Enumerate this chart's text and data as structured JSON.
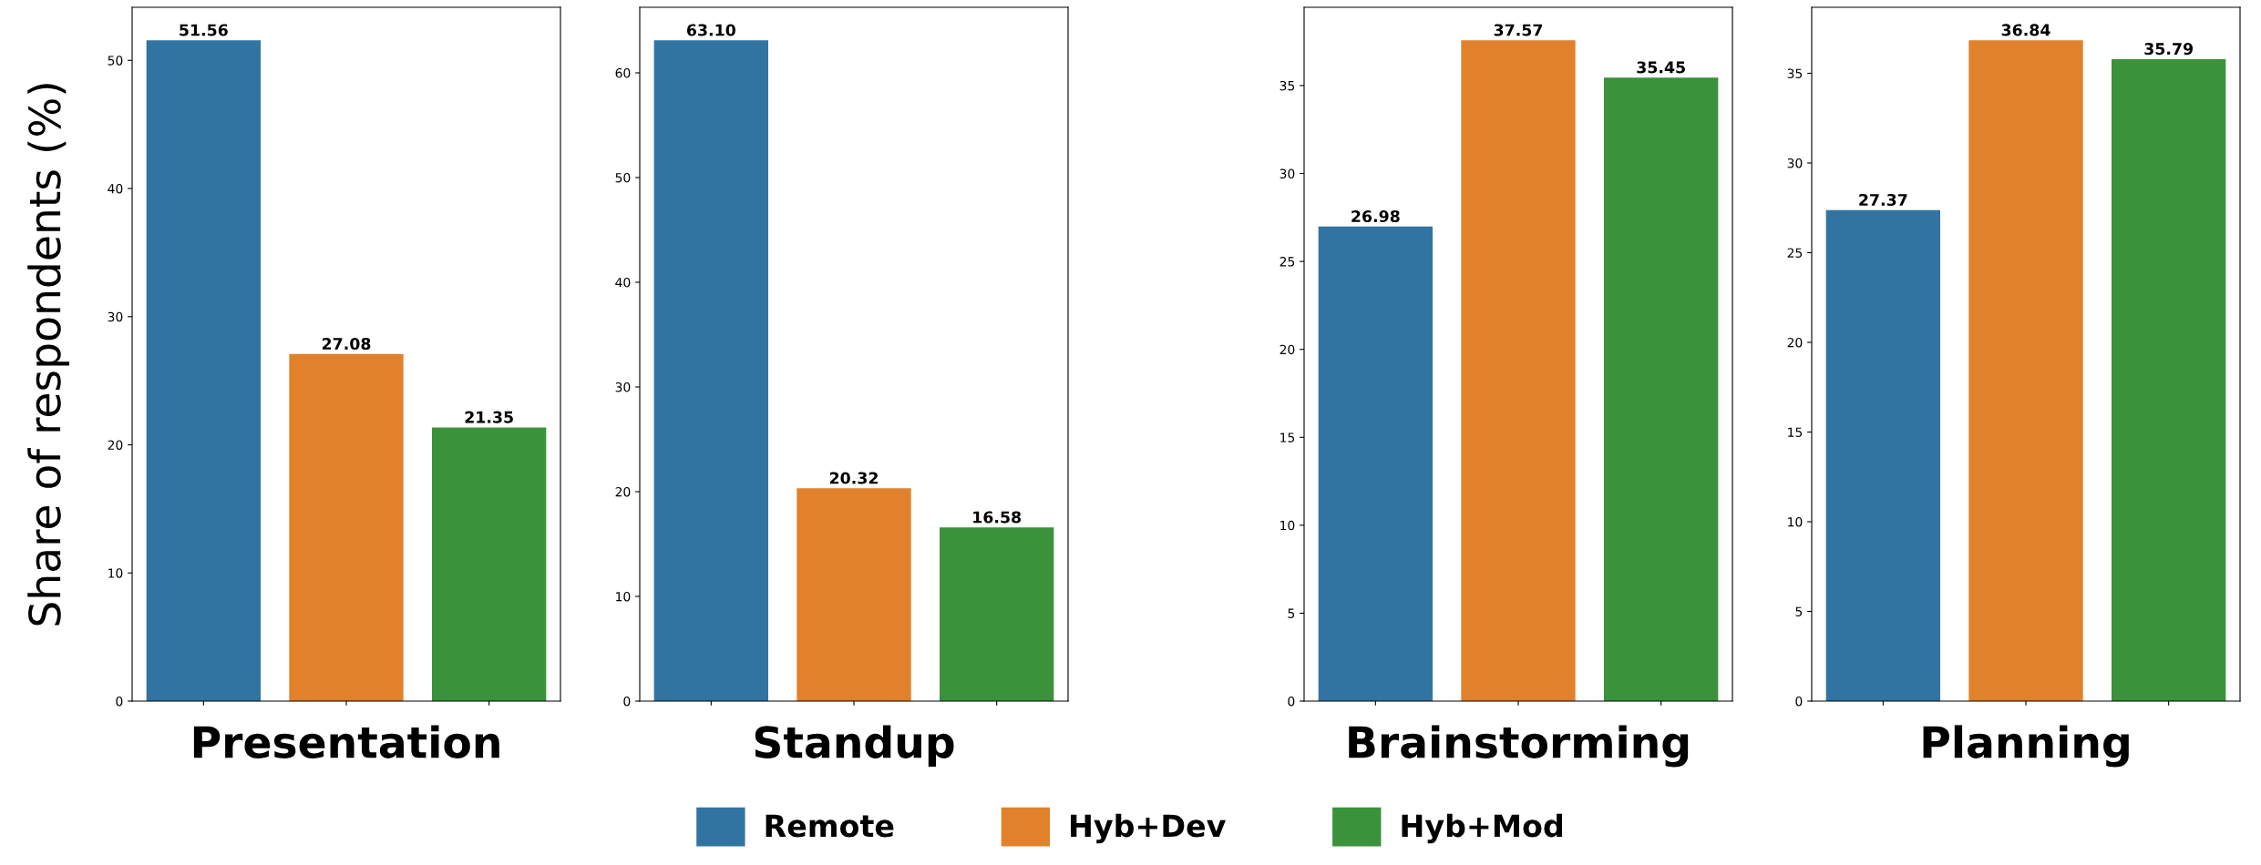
{
  "chart_data": [
    {
      "type": "bar",
      "xlabel": "Presentation",
      "ylabel": "Share of respondents (%)",
      "categories": [
        null,
        null,
        null
      ],
      "series": [
        {
          "name": "Remote",
          "color": "#3274a1",
          "values": [
            51.56,
            null,
            null
          ],
          "value_labels": [
            "51.56",
            null,
            null
          ]
        },
        {
          "name": "Hyb+Dev",
          "color": "#e1812c",
          "values": [
            null,
            27.08,
            null
          ],
          "value_labels": [
            null,
            "27.08",
            null
          ]
        },
        {
          "name": "Hyb+Mod",
          "color": "#3a923a",
          "values": [
            null,
            null,
            21.35
          ],
          "value_labels": [
            null,
            null,
            "21.35"
          ]
        }
      ],
      "ylim": [
        0,
        54.14
      ],
      "yticks": [
        0,
        10,
        20,
        30,
        40,
        50
      ],
      "legend": "bottom"
    },
    {
      "type": "bar",
      "xlabel": "Standup",
      "categories": [
        null,
        null,
        null
      ],
      "series": [
        {
          "color": "#3274a1",
          "values": [
            63.1,
            null,
            null
          ],
          "value_labels": [
            "63.10",
            null,
            null
          ]
        },
        {
          "color": "#e1812c",
          "values": [
            null,
            20.32,
            null
          ],
          "value_labels": [
            null,
            "20.32",
            null
          ]
        },
        {
          "color": "#3a923a",
          "values": [
            null,
            null,
            16.58
          ],
          "value_labels": [
            null,
            null,
            "16.58"
          ]
        }
      ],
      "ylim": [
        0,
        66.26
      ],
      "yticks": [
        0,
        10,
        20,
        30,
        40,
        50,
        60
      ]
    },
    {
      "type": "bar",
      "xlabel": "Brainstorming",
      "categories": [
        null,
        null,
        null
      ],
      "series": [
        {
          "color": "#3274a1",
          "values": [
            26.98,
            null,
            null
          ],
          "value_labels": [
            "26.98",
            null,
            null
          ]
        },
        {
          "color": "#e1812c",
          "values": [
            null,
            37.57,
            null
          ],
          "value_labels": [
            null,
            "37.57",
            null
          ]
        },
        {
          "color": "#3a923a",
          "values": [
            null,
            null,
            35.45
          ],
          "value_labels": [
            null,
            null,
            "35.45"
          ]
        }
      ],
      "ylim": [
        0,
        39.45
      ],
      "yticks": [
        0,
        5,
        10,
        15,
        20,
        25,
        30,
        35
      ]
    },
    {
      "type": "bar",
      "xlabel": "Planning",
      "categories": [
        null,
        null,
        null
      ],
      "series": [
        {
          "color": "#3274a1",
          "values": [
            27.37,
            null,
            null
          ],
          "value_labels": [
            "27.37",
            null,
            null
          ]
        },
        {
          "color": "#e1812c",
          "values": [
            null,
            36.84,
            null
          ],
          "value_labels": [
            null,
            "36.84",
            null
          ]
        },
        {
          "color": "#3a923a",
          "values": [
            null,
            null,
            35.79
          ],
          "value_labels": [
            null,
            null,
            "35.79"
          ]
        }
      ],
      "ylim": [
        0,
        38.68
      ],
      "yticks": [
        0,
        5,
        10,
        15,
        20,
        25,
        30,
        35
      ]
    }
  ]
}
